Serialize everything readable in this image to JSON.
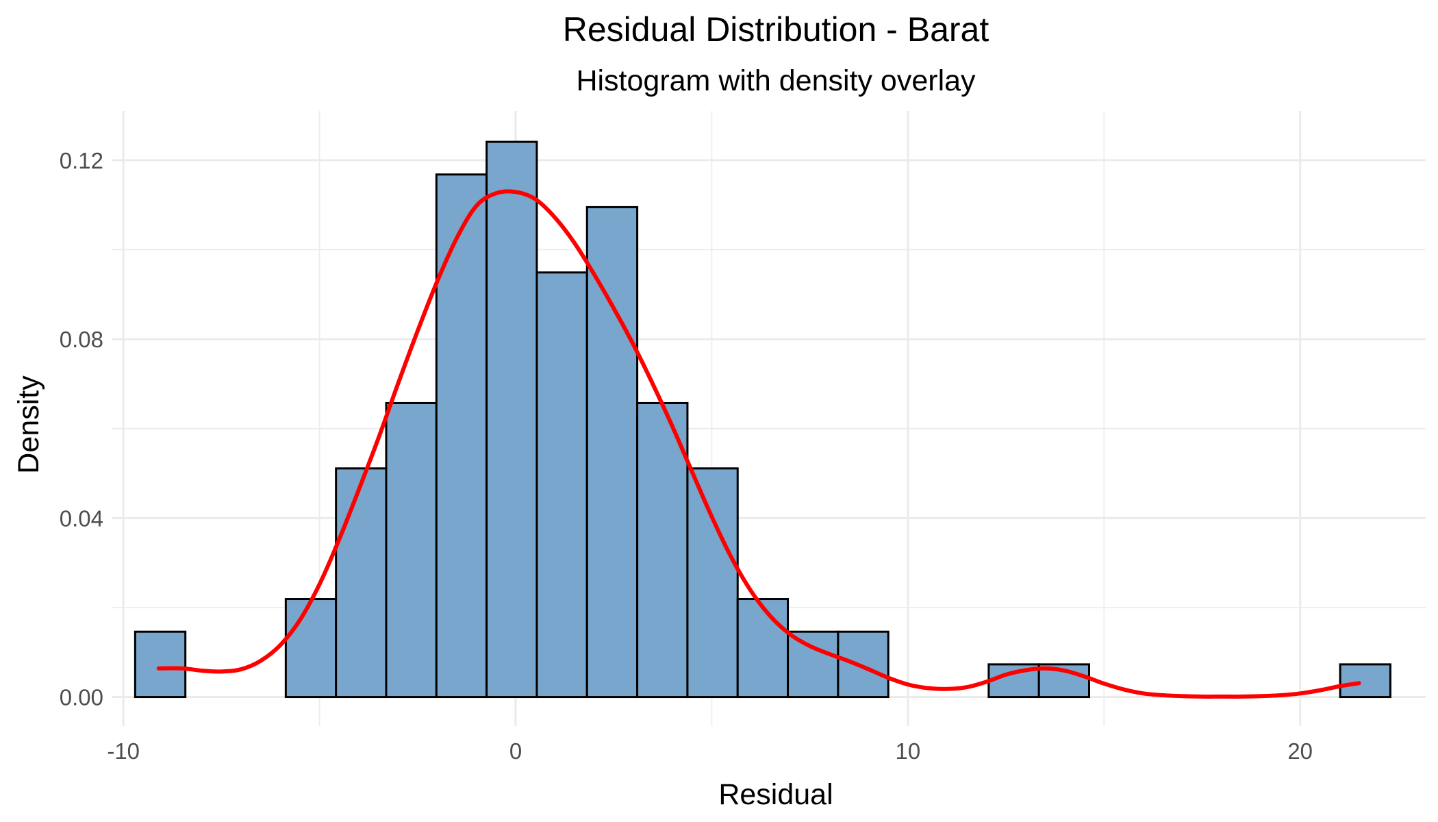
{
  "chart_data": {
    "type": "histogram",
    "title": "Residual Distribution - Barat",
    "subtitle": "Histogram with density overlay",
    "xlabel": "Residual",
    "ylabel": "Density",
    "xlim": [
      -10.3,
      23.2
    ],
    "ylim": [
      -0.0065,
      0.131
    ],
    "x_ticks": [
      -10,
      0,
      10,
      20
    ],
    "x_tick_labels": [
      "-10",
      "0",
      "10",
      "20"
    ],
    "y_ticks": [
      0.0,
      0.04,
      0.08,
      0.12
    ],
    "y_tick_labels": [
      "0.00",
      "0.04",
      "0.08",
      "0.12"
    ],
    "grid": true,
    "bar_fill": "#79a6cc",
    "bar_outline": "#000000",
    "density_color": "#ff0000",
    "bins": [
      {
        "x0": -9.7,
        "x1": -8.42,
        "density": 0.0146
      },
      {
        "x0": -8.42,
        "x1": -7.14,
        "density": 0.0
      },
      {
        "x0": -7.14,
        "x1": -5.86,
        "density": 0.0
      },
      {
        "x0": -5.86,
        "x1": -4.58,
        "density": 0.0219
      },
      {
        "x0": -4.58,
        "x1": -3.3,
        "density": 0.0511
      },
      {
        "x0": -3.3,
        "x1": -2.02,
        "density": 0.0657
      },
      {
        "x0": -2.02,
        "x1": -0.74,
        "density": 0.1168
      },
      {
        "x0": -0.74,
        "x1": 0.54,
        "density": 0.1241
      },
      {
        "x0": 0.54,
        "x1": 1.82,
        "density": 0.0949
      },
      {
        "x0": 1.82,
        "x1": 3.1,
        "density": 0.1095
      },
      {
        "x0": 3.1,
        "x1": 4.38,
        "density": 0.0657
      },
      {
        "x0": 4.38,
        "x1": 5.66,
        "density": 0.0511
      },
      {
        "x0": 5.66,
        "x1": 6.94,
        "density": 0.0219
      },
      {
        "x0": 6.94,
        "x1": 8.22,
        "density": 0.0146
      },
      {
        "x0": 8.22,
        "x1": 9.5,
        "density": 0.0146
      },
      {
        "x0": 9.5,
        "x1": 10.78,
        "density": 0.0
      },
      {
        "x0": 10.78,
        "x1": 12.06,
        "density": 0.0
      },
      {
        "x0": 12.06,
        "x1": 13.34,
        "density": 0.0073
      },
      {
        "x0": 13.34,
        "x1": 14.62,
        "density": 0.0073
      },
      {
        "x0": 14.62,
        "x1": 15.9,
        "density": 0.0
      },
      {
        "x0": 15.9,
        "x1": 17.18,
        "density": 0.0
      },
      {
        "x0": 17.18,
        "x1": 18.46,
        "density": 0.0
      },
      {
        "x0": 18.46,
        "x1": 19.74,
        "density": 0.0
      },
      {
        "x0": 19.74,
        "x1": 21.02,
        "density": 0.0
      },
      {
        "x0": 21.02,
        "x1": 22.3,
        "density": 0.0073
      }
    ],
    "density_curve": {
      "x": [
        -9.1,
        -8.5,
        -8.0,
        -7.5,
        -7.0,
        -6.5,
        -6.0,
        -5.5,
        -5.0,
        -4.5,
        -4.0,
        -3.5,
        -3.0,
        -2.5,
        -2.0,
        -1.5,
        -1.0,
        -0.5,
        0.0,
        0.5,
        1.0,
        1.5,
        2.0,
        2.5,
        3.0,
        3.5,
        4.0,
        4.5,
        5.0,
        5.5,
        6.0,
        6.5,
        7.0,
        7.5,
        8.0,
        8.5,
        9.0,
        9.5,
        10.0,
        10.5,
        11.0,
        11.5,
        12.0,
        12.5,
        13.0,
        13.5,
        14.0,
        14.5,
        15.0,
        15.5,
        16.0,
        16.5,
        17.0,
        17.5,
        18.0,
        18.5,
        19.0,
        19.5,
        20.0,
        20.5,
        21.0,
        21.5
      ],
      "y": [
        0.0064,
        0.0064,
        0.0059,
        0.0057,
        0.0062,
        0.0081,
        0.0116,
        0.0172,
        0.0252,
        0.0352,
        0.0463,
        0.0578,
        0.07,
        0.0818,
        0.0929,
        0.1026,
        0.1098,
        0.1126,
        0.1129,
        0.1113,
        0.1072,
        0.1015,
        0.0945,
        0.0869,
        0.0788,
        0.0699,
        0.0604,
        0.0503,
        0.0403,
        0.0312,
        0.0237,
        0.018,
        0.014,
        0.0114,
        0.0096,
        0.008,
        0.0062,
        0.0043,
        0.0028,
        0.002,
        0.0018,
        0.0022,
        0.0034,
        0.005,
        0.006,
        0.0064,
        0.0059,
        0.0046,
        0.003,
        0.0017,
        0.0008,
        0.0004,
        0.0002,
        0.0001,
        0.0001,
        0.0001,
        0.0002,
        0.0004,
        0.0008,
        0.0015,
        0.0024,
        0.0031
      ]
    }
  }
}
